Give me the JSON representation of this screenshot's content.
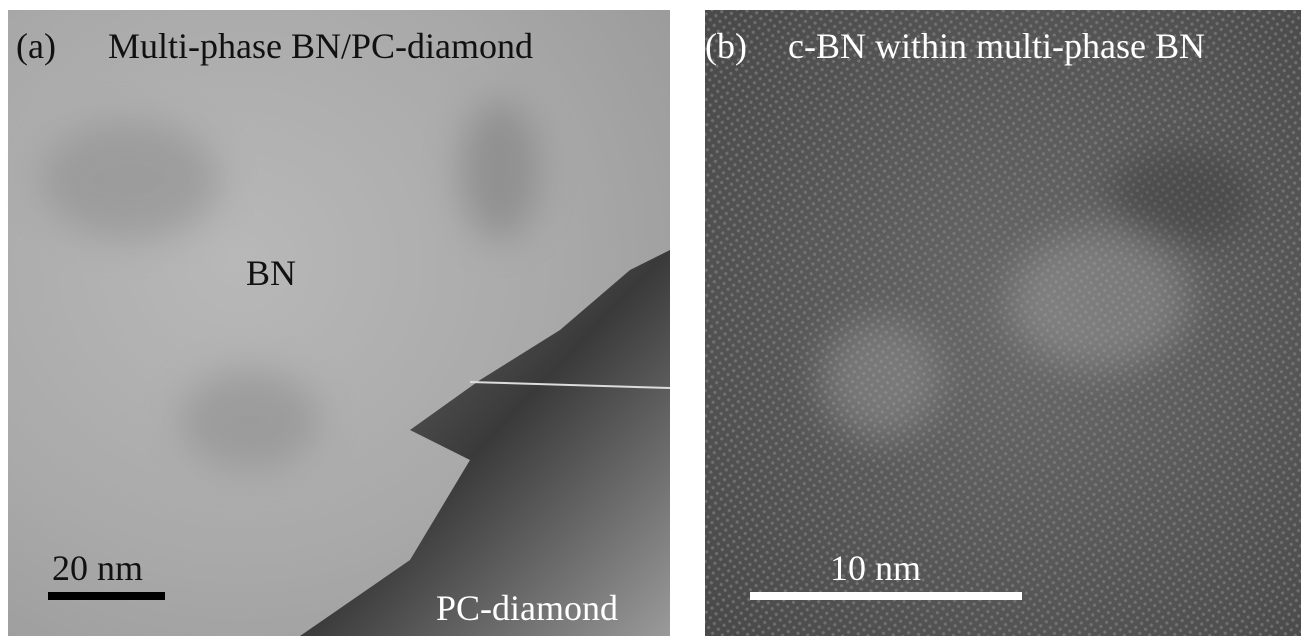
{
  "panels": [
    {
      "label": "(a)",
      "title": "Multi-phase BN/PC-diamond",
      "annotations": [
        "BN",
        "PC-diamond"
      ],
      "scale_bar": "20 nm"
    },
    {
      "label": "(b)",
      "title": "c-BN within multi-phase BN",
      "scale_bar": "10 nm"
    }
  ]
}
